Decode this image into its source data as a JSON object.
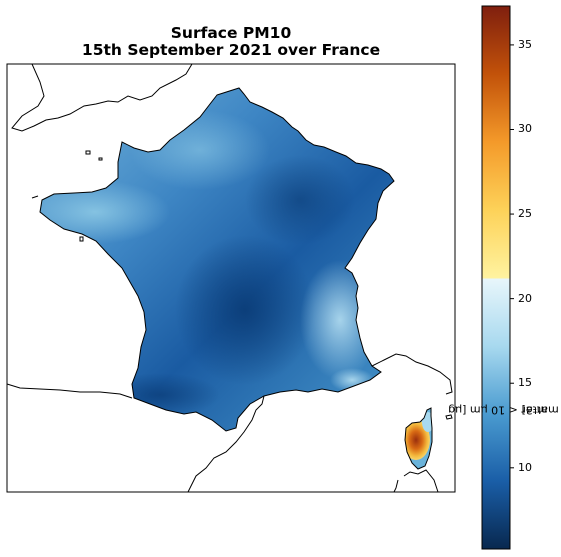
{
  "title_line1": "Surface PM10",
  "title_line2": "15th September 2021 over France",
  "colorbar": {
    "label": "Particulate matter < 10 µm [µg m-3]",
    "label_line1": "Particulate matter < 10 µm [µg",
    "label_line2": "m-3]",
    "min": 5.2,
    "max": 37.3,
    "ticks": [
      "10",
      "15",
      "20",
      "25",
      "30",
      "35"
    ],
    "colormap": "blue-white-yellow-red diverging, split at ~21",
    "colors": [
      "#08284f",
      "#1a5ea7",
      "#4a9bd0",
      "#a8d9ef",
      "#e8f6fb",
      "#fff3a0",
      "#fdd259",
      "#f49a2a",
      "#c2520a",
      "#7f1f0e"
    ]
  },
  "map": {
    "region": "France",
    "variable": "Surface PM10",
    "land_color_typical": "#3b7fc0",
    "hotspot_region": "Corsica (high PM10 ~30-37)",
    "low_region": "Central France (~6-9)"
  }
}
